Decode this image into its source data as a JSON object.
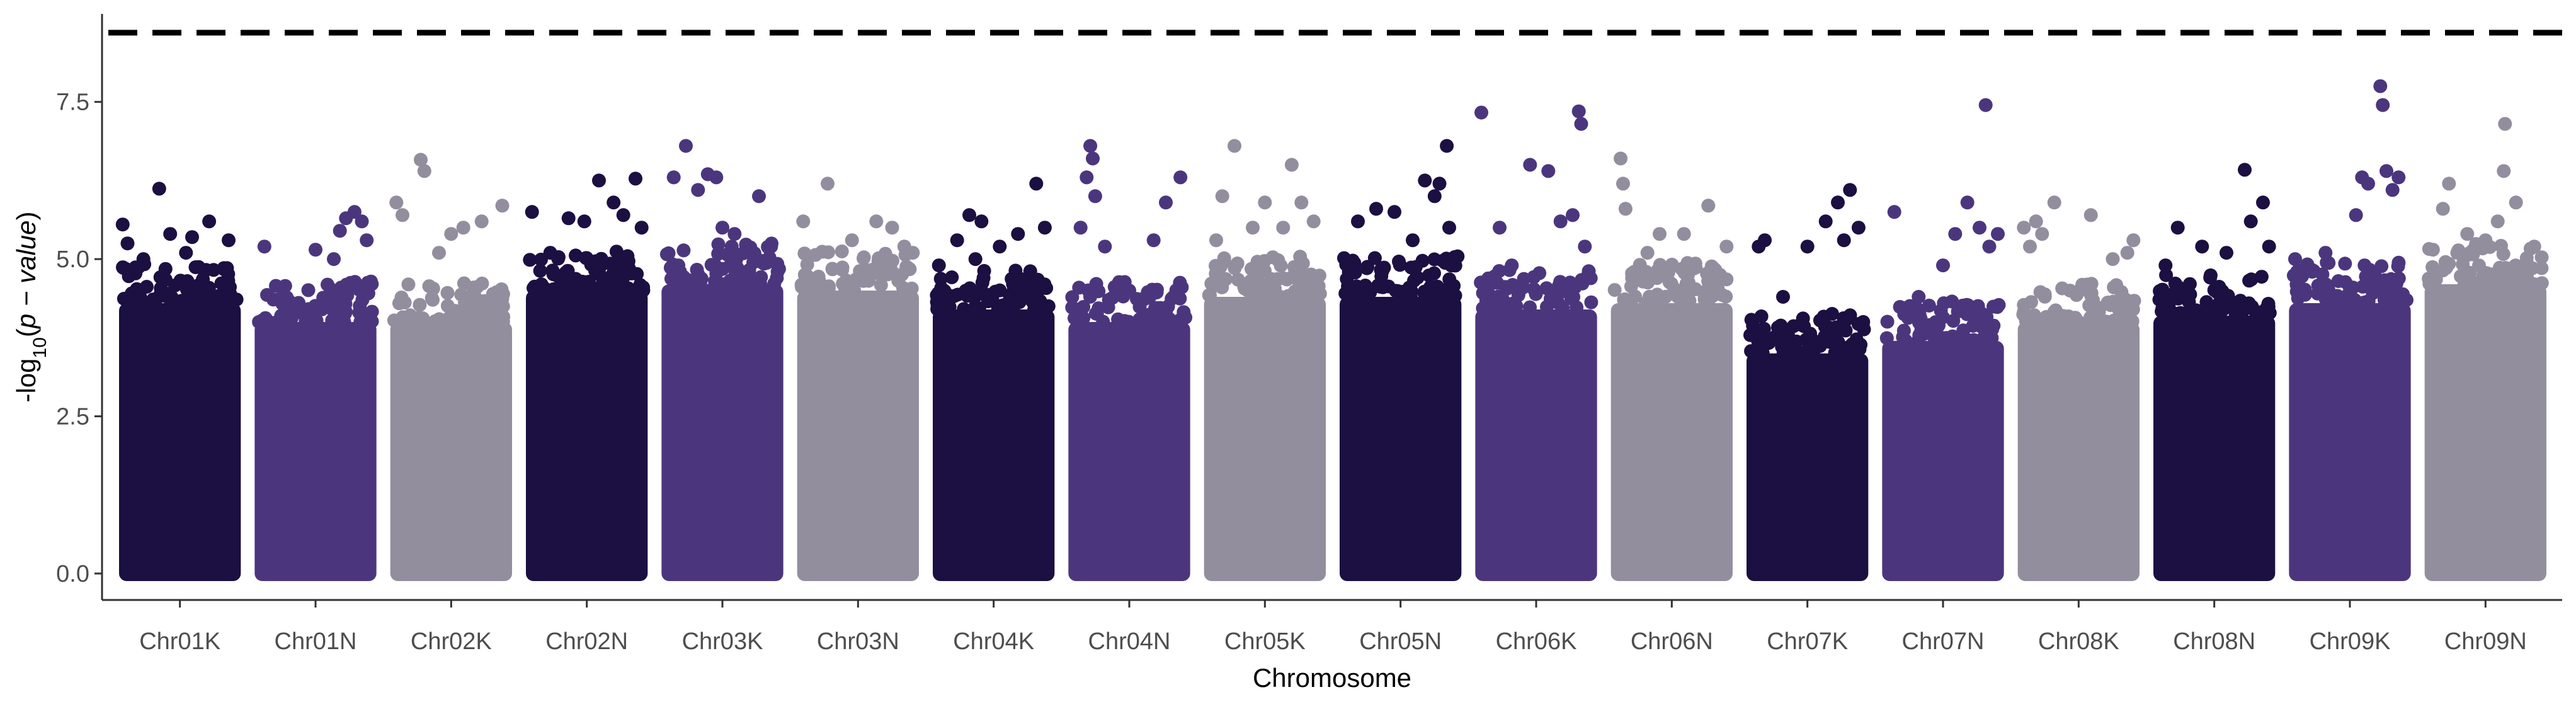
{
  "chart_data": {
    "type": "scatter",
    "subtype": "manhattan",
    "title": "",
    "xlabel": "Chromosome",
    "ylabel_parts": {
      "prefix": "-log",
      "subscript": "10",
      "open": "(",
      "italic": "p − value",
      "close": ")"
    },
    "ylim": [
      0,
      8.9
    ],
    "yticks": [
      0.0,
      2.5,
      5.0,
      7.5
    ],
    "ytick_labels": [
      "0.0",
      "2.5",
      "5.0",
      "7.5"
    ],
    "threshold": {
      "value": 8.6,
      "style": "dashed",
      "color": "#000000"
    },
    "grid": false,
    "legend": "none",
    "palette": [
      "#1c0f41",
      "#4b367e",
      "#938e9e"
    ],
    "chromosomes": [
      {
        "name": "Chr01K",
        "color": "#1c0f41",
        "base_max": 4.3,
        "top": [
          {
            "x": 0.03,
            "y": 5.55
          },
          {
            "x": 0.07,
            "y": 5.25
          },
          {
            "x": 0.33,
            "y": 6.12
          },
          {
            "x": 0.42,
            "y": 5.4
          },
          {
            "x": 0.6,
            "y": 5.35
          },
          {
            "x": 0.74,
            "y": 5.6
          },
          {
            "x": 0.9,
            "y": 5.3
          },
          {
            "x": 0.55,
            "y": 5.1
          },
          {
            "x": 0.2,
            "y": 5.0
          }
        ]
      },
      {
        "name": "Chr01N",
        "color": "#4b367e",
        "base_max": 4.0,
        "top": [
          {
            "x": 0.08,
            "y": 5.2
          },
          {
            "x": 0.5,
            "y": 5.15
          },
          {
            "x": 0.7,
            "y": 5.45
          },
          {
            "x": 0.75,
            "y": 5.65
          },
          {
            "x": 0.82,
            "y": 5.75
          },
          {
            "x": 0.88,
            "y": 5.6
          },
          {
            "x": 0.92,
            "y": 5.3
          },
          {
            "x": 0.65,
            "y": 5.0
          }
        ]
      },
      {
        "name": "Chr02K",
        "color": "#938e9e",
        "base_max": 4.0,
        "top": [
          {
            "x": 0.05,
            "y": 5.9
          },
          {
            "x": 0.1,
            "y": 5.7
          },
          {
            "x": 0.25,
            "y": 6.58
          },
          {
            "x": 0.28,
            "y": 6.4
          },
          {
            "x": 0.5,
            "y": 5.4
          },
          {
            "x": 0.6,
            "y": 5.5
          },
          {
            "x": 0.75,
            "y": 5.6
          },
          {
            "x": 0.92,
            "y": 5.85
          },
          {
            "x": 0.4,
            "y": 5.1
          }
        ]
      },
      {
        "name": "Chr02N",
        "color": "#1c0f41",
        "base_max": 4.5,
        "top": [
          {
            "x": 0.05,
            "y": 5.75
          },
          {
            "x": 0.35,
            "y": 5.65
          },
          {
            "x": 0.48,
            "y": 5.6
          },
          {
            "x": 0.6,
            "y": 6.25
          },
          {
            "x": 0.72,
            "y": 5.9
          },
          {
            "x": 0.8,
            "y": 5.7
          },
          {
            "x": 0.9,
            "y": 6.28
          },
          {
            "x": 0.95,
            "y": 5.5
          },
          {
            "x": 0.2,
            "y": 5.1
          }
        ]
      },
      {
        "name": "Chr03K",
        "color": "#4b367e",
        "base_max": 4.6,
        "top": [
          {
            "x": 0.1,
            "y": 6.3
          },
          {
            "x": 0.2,
            "y": 6.8
          },
          {
            "x": 0.3,
            "y": 6.1
          },
          {
            "x": 0.38,
            "y": 6.35
          },
          {
            "x": 0.45,
            "y": 6.3
          },
          {
            "x": 0.6,
            "y": 5.4
          },
          {
            "x": 0.8,
            "y": 6.0
          },
          {
            "x": 0.9,
            "y": 5.2
          },
          {
            "x": 0.5,
            "y": 5.5
          }
        ]
      },
      {
        "name": "Chr03N",
        "color": "#938e9e",
        "base_max": 4.5,
        "top": [
          {
            "x": 0.05,
            "y": 5.6
          },
          {
            "x": 0.25,
            "y": 6.2
          },
          {
            "x": 0.45,
            "y": 5.3
          },
          {
            "x": 0.65,
            "y": 5.6
          },
          {
            "x": 0.78,
            "y": 5.5
          },
          {
            "x": 0.88,
            "y": 5.2
          },
          {
            "x": 0.95,
            "y": 5.1
          }
        ]
      },
      {
        "name": "Chr04K",
        "color": "#1c0f41",
        "base_max": 4.2,
        "top": [
          {
            "x": 0.05,
            "y": 4.9
          },
          {
            "x": 0.2,
            "y": 5.3
          },
          {
            "x": 0.3,
            "y": 5.7
          },
          {
            "x": 0.4,
            "y": 5.6
          },
          {
            "x": 0.55,
            "y": 5.2
          },
          {
            "x": 0.7,
            "y": 5.4
          },
          {
            "x": 0.85,
            "y": 6.2
          },
          {
            "x": 0.92,
            "y": 5.5
          },
          {
            "x": 0.35,
            "y": 5.0
          }
        ]
      },
      {
        "name": "Chr04N",
        "color": "#4b367e",
        "base_max": 4.0,
        "top": [
          {
            "x": 0.1,
            "y": 5.5
          },
          {
            "x": 0.15,
            "y": 6.3
          },
          {
            "x": 0.18,
            "y": 6.8
          },
          {
            "x": 0.2,
            "y": 6.6
          },
          {
            "x": 0.22,
            "y": 6.0
          },
          {
            "x": 0.3,
            "y": 5.2
          },
          {
            "x": 0.5,
            "y": 4.5
          },
          {
            "x": 0.7,
            "y": 5.3
          },
          {
            "x": 0.8,
            "y": 5.9
          },
          {
            "x": 0.92,
            "y": 6.3
          }
        ]
      },
      {
        "name": "Chr05K",
        "color": "#938e9e",
        "base_max": 4.4,
        "top": [
          {
            "x": 0.1,
            "y": 5.3
          },
          {
            "x": 0.15,
            "y": 6.0
          },
          {
            "x": 0.25,
            "y": 6.8
          },
          {
            "x": 0.4,
            "y": 5.5
          },
          {
            "x": 0.5,
            "y": 5.9
          },
          {
            "x": 0.65,
            "y": 5.5
          },
          {
            "x": 0.72,
            "y": 6.5
          },
          {
            "x": 0.8,
            "y": 5.9
          },
          {
            "x": 0.9,
            "y": 5.6
          }
        ]
      },
      {
        "name": "Chr05N",
        "color": "#1c0f41",
        "base_max": 4.4,
        "top": [
          {
            "x": 0.15,
            "y": 5.6
          },
          {
            "x": 0.3,
            "y": 5.8
          },
          {
            "x": 0.45,
            "y": 5.75
          },
          {
            "x": 0.7,
            "y": 6.25
          },
          {
            "x": 0.78,
            "y": 6.0
          },
          {
            "x": 0.82,
            "y": 6.2
          },
          {
            "x": 0.88,
            "y": 6.8
          },
          {
            "x": 0.9,
            "y": 5.5
          },
          {
            "x": 0.6,
            "y": 5.3
          }
        ]
      },
      {
        "name": "Chr06K",
        "color": "#4b367e",
        "base_max": 4.2,
        "top": [
          {
            "x": 0.05,
            "y": 7.33
          },
          {
            "x": 0.2,
            "y": 5.5
          },
          {
            "x": 0.45,
            "y": 6.5
          },
          {
            "x": 0.6,
            "y": 6.4
          },
          {
            "x": 0.7,
            "y": 5.6
          },
          {
            "x": 0.8,
            "y": 5.7
          },
          {
            "x": 0.85,
            "y": 7.35
          },
          {
            "x": 0.87,
            "y": 7.15
          },
          {
            "x": 0.9,
            "y": 5.2
          },
          {
            "x": 0.3,
            "y": 4.9
          }
        ]
      },
      {
        "name": "Chr06N",
        "color": "#938e9e",
        "base_max": 4.3,
        "top": [
          {
            "x": 0.08,
            "y": 6.6
          },
          {
            "x": 0.1,
            "y": 6.2
          },
          {
            "x": 0.12,
            "y": 5.8
          },
          {
            "x": 0.3,
            "y": 5.1
          },
          {
            "x": 0.4,
            "y": 5.4
          },
          {
            "x": 0.6,
            "y": 5.4
          },
          {
            "x": 0.8,
            "y": 5.85
          },
          {
            "x": 0.95,
            "y": 5.2
          }
        ]
      },
      {
        "name": "Chr07K",
        "color": "#1c0f41",
        "base_max": 3.5,
        "top": [
          {
            "x": 0.1,
            "y": 5.2
          },
          {
            "x": 0.15,
            "y": 5.3
          },
          {
            "x": 0.3,
            "y": 4.4
          },
          {
            "x": 0.5,
            "y": 5.2
          },
          {
            "x": 0.65,
            "y": 5.6
          },
          {
            "x": 0.75,
            "y": 5.9
          },
          {
            "x": 0.85,
            "y": 6.1
          },
          {
            "x": 0.92,
            "y": 5.5
          },
          {
            "x": 0.8,
            "y": 5.3
          }
        ]
      },
      {
        "name": "Chr07N",
        "color": "#4b367e",
        "base_max": 3.7,
        "top": [
          {
            "x": 0.1,
            "y": 5.75
          },
          {
            "x": 0.3,
            "y": 4.4
          },
          {
            "x": 0.5,
            "y": 4.9
          },
          {
            "x": 0.6,
            "y": 5.4
          },
          {
            "x": 0.7,
            "y": 5.9
          },
          {
            "x": 0.8,
            "y": 5.5
          },
          {
            "x": 0.85,
            "y": 7.45
          },
          {
            "x": 0.88,
            "y": 5.2
          },
          {
            "x": 0.95,
            "y": 5.4
          }
        ]
      },
      {
        "name": "Chr08K",
        "color": "#938e9e",
        "base_max": 4.0,
        "top": [
          {
            "x": 0.05,
            "y": 5.5
          },
          {
            "x": 0.1,
            "y": 5.2
          },
          {
            "x": 0.15,
            "y": 5.6
          },
          {
            "x": 0.2,
            "y": 5.4
          },
          {
            "x": 0.3,
            "y": 5.9
          },
          {
            "x": 0.6,
            "y": 5.7
          },
          {
            "x": 0.78,
            "y": 5.0
          },
          {
            "x": 0.9,
            "y": 5.1
          },
          {
            "x": 0.95,
            "y": 5.3
          }
        ]
      },
      {
        "name": "Chr08N",
        "color": "#1c0f41",
        "base_max": 4.1,
        "top": [
          {
            "x": 0.1,
            "y": 4.9
          },
          {
            "x": 0.2,
            "y": 5.5
          },
          {
            "x": 0.4,
            "y": 5.2
          },
          {
            "x": 0.6,
            "y": 5.1
          },
          {
            "x": 0.75,
            "y": 6.42
          },
          {
            "x": 0.8,
            "y": 5.6
          },
          {
            "x": 0.9,
            "y": 5.9
          },
          {
            "x": 0.95,
            "y": 5.2
          }
        ]
      },
      {
        "name": "Chr09K",
        "color": "#4b367e",
        "base_max": 4.3,
        "top": [
          {
            "x": 0.05,
            "y": 5.0
          },
          {
            "x": 0.3,
            "y": 5.1
          },
          {
            "x": 0.55,
            "y": 5.7
          },
          {
            "x": 0.6,
            "y": 6.3
          },
          {
            "x": 0.65,
            "y": 6.2
          },
          {
            "x": 0.75,
            "y": 7.75
          },
          {
            "x": 0.77,
            "y": 7.45
          },
          {
            "x": 0.8,
            "y": 6.4
          },
          {
            "x": 0.85,
            "y": 6.1
          },
          {
            "x": 0.9,
            "y": 6.3
          }
        ]
      },
      {
        "name": "Chr09N",
        "color": "#938e9e",
        "base_max": 4.6,
        "top": [
          {
            "x": 0.15,
            "y": 5.8
          },
          {
            "x": 0.2,
            "y": 6.2
          },
          {
            "x": 0.35,
            "y": 5.4
          },
          {
            "x": 0.5,
            "y": 5.3
          },
          {
            "x": 0.6,
            "y": 5.6
          },
          {
            "x": 0.65,
            "y": 6.4
          },
          {
            "x": 0.66,
            "y": 7.15
          },
          {
            "x": 0.75,
            "y": 5.9
          },
          {
            "x": 0.9,
            "y": 5.2
          }
        ]
      }
    ]
  }
}
